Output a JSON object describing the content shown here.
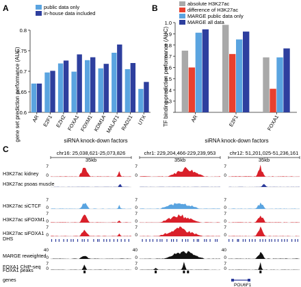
{
  "panels": {
    "A": {
      "letter": "A"
    },
    "B": {
      "letter": "B"
    },
    "C": {
      "letter": "C"
    }
  },
  "colors": {
    "light_blue": "#5aa4e0",
    "dark_blue": "#2e3f9e",
    "gray": "#a9a9a9",
    "red": "#e8402e",
    "track_red": "#d9202a",
    "track_black": "#111111"
  },
  "chart_data": [
    {
      "panel": "A",
      "type": "bar",
      "ylabel": "gene set prediction performance (AUC)",
      "xlabel": "siRNA knock-down factors",
      "ylim": [
        0.6,
        0.8
      ],
      "yticks": [
        0.6,
        0.65,
        0.7,
        0.75,
        0.8
      ],
      "ytick_labels": [
        "0.6",
        "0.65",
        "0.7",
        "0.75",
        "0.8"
      ],
      "categories": [
        "AR",
        "E2F1",
        "EZH2",
        "FOXA1",
        "FOXM1",
        "KDM1A",
        "MALAT1",
        "RAD21",
        "UTX"
      ],
      "series": [
        {
          "name": "public data only",
          "color": "#5aa4e0",
          "values": [
            0.67,
            0.697,
            0.719,
            0.699,
            0.727,
            0.707,
            0.745,
            0.705,
            0.657
          ]
        },
        {
          "name": "in-house data included",
          "color": "#2e3f9e",
          "values": [
            0.67,
            0.701,
            0.726,
            0.741,
            0.734,
            0.718,
            0.765,
            0.72,
            0.674
          ]
        }
      ],
      "legend_placement": "top-left"
    },
    {
      "panel": "B",
      "type": "bar",
      "ylabel": "TF binding prediction performance (AUC)",
      "xlabel": "siRNA knock-down factors",
      "ylim": [
        0.2,
        1.0
      ],
      "yticks": [
        0.2,
        0.3,
        0.4,
        0.5,
        0.6,
        0.7,
        0.8,
        0.9,
        1.0
      ],
      "ytick_labels": [
        "",
        "0.3",
        "0.4",
        "0.5",
        "0.6",
        "0.7",
        "0.8",
        "0.9",
        "1.0"
      ],
      "categories": [
        "AR",
        "E2F1",
        "FOXA1"
      ],
      "series": [
        {
          "name": "absolute H3K27ac",
          "color": "#a9a9a9",
          "values": [
            0.75,
            0.98,
            0.69
          ]
        },
        {
          "name": "difference of H3K27ac",
          "color": "#e8402e",
          "values": [
            0.6,
            0.72,
            0.41
          ]
        },
        {
          "name": "MARGE public data only",
          "color": "#5aa4e0",
          "values": [
            0.91,
            0.85,
            0.69
          ]
        },
        {
          "name": "MARGE all data",
          "color": "#2e3f9e",
          "values": [
            0.94,
            0.92,
            0.77
          ]
        }
      ],
      "legend_placement": "top"
    }
  ],
  "tracks": {
    "regions": [
      {
        "coords": "chr16: 25,038,621-25,073,826",
        "scale": "35kb"
      },
      {
        "coords": "chr1: 229,204,466-229,239,953",
        "scale": "35kb"
      },
      {
        "coords": "chr12: 51,201,025-51,236,161",
        "scale": "35kb"
      }
    ],
    "rows": [
      {
        "label": "H3K27ac kidney",
        "color": "#d9202a",
        "ymax": "7",
        "ymin": "0",
        "kind": "signal"
      },
      {
        "label": "H3K27ac psoas muscle",
        "color": "#2a3a9a",
        "ymax": "",
        "ymin": "",
        "kind": "signal"
      },
      {
        "label": "H3K27ac siCTCF",
        "color": "#5aa4e0",
        "ymax": "7",
        "ymin": "0",
        "kind": "signal"
      },
      {
        "label": "H3K27ac siFOXM1",
        "color": "#d9202a",
        "ymax": "7",
        "ymin": "0",
        "kind": "signal"
      },
      {
        "label": "H3K27ac siFOXA1",
        "color": "#d9202a",
        "ymax": "7",
        "ymin": "0",
        "kind": "signal"
      },
      {
        "label": "DHS",
        "color": "#2a3a9a",
        "ymax": "",
        "ymin": "",
        "kind": "ticks"
      },
      {
        "label": "MARGE reweighted",
        "color": "#111111",
        "ymax": "40",
        "ymin": "0",
        "kind": "signal"
      },
      {
        "label": "FOXA1 ChIP-seq",
        "color": "#111111",
        "ymax": "7",
        "ymin": "0",
        "kind": "signal"
      },
      {
        "label": "FOXA1 peaks",
        "color": "#111111",
        "ymax": "",
        "ymin": "",
        "kind": "peaks"
      },
      {
        "label": "genes",
        "color": "#2a3a9a",
        "ymax": "",
        "ymin": "",
        "kind": "genes"
      }
    ],
    "gene_label": "POU6F1"
  }
}
